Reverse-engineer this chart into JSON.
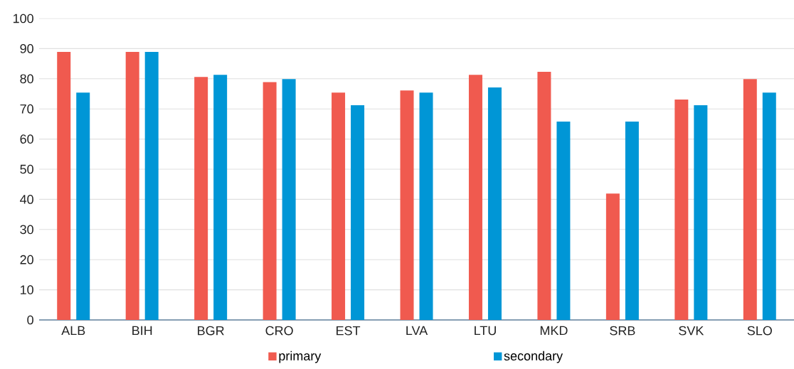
{
  "chart_data": {
    "type": "bar",
    "categories": [
      "ALB",
      "BIH",
      "BGR",
      "CRO",
      "EST",
      "LVA",
      "LTU",
      "MKD",
      "SRB",
      "SVK",
      "SLO"
    ],
    "series": [
      {
        "name": "primary",
        "color": "#f05a4f",
        "values": [
          88.9,
          88.9,
          80.6,
          78.9,
          75.4,
          76.1,
          81.3,
          82.3,
          41.9,
          73.1,
          79.9
        ]
      },
      {
        "name": "secondary",
        "color": "#0096d6",
        "values": [
          75.4,
          88.9,
          81.3,
          79.9,
          71.2,
          75.4,
          77.1,
          65.8,
          65.8,
          71.2,
          75.4
        ]
      }
    ],
    "ylim": [
      0,
      100
    ],
    "yticks": [
      0,
      10,
      20,
      30,
      40,
      50,
      60,
      70,
      80,
      90,
      100
    ],
    "grid": "y",
    "legend": "bottom"
  }
}
